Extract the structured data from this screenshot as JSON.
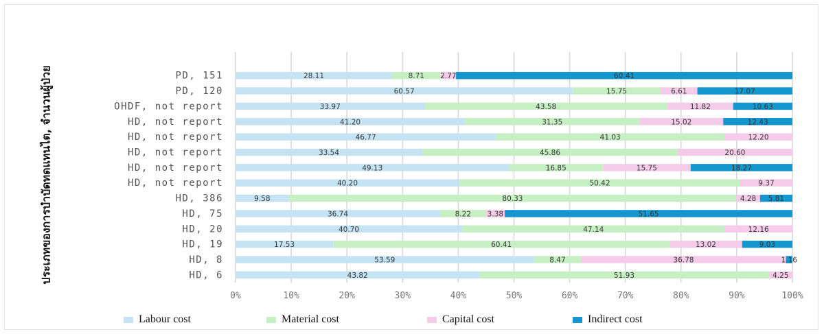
{
  "chart_data": {
    "type": "bar",
    "orientation": "horizontal",
    "stacked": "percent",
    "ylabel": "ประเภทของการบำบัดทดแทนไต, จำนวนผู้ป่วย",
    "categories": [
      "PD, 151",
      "PD, 120",
      "OHDF, not report",
      "HD, not report",
      "HD, not report",
      "HD, not report",
      "HD, not report",
      "HD, not report",
      "HD, 386",
      "HD, 75",
      "HD, 20",
      "HD, 19",
      "HD, 8",
      "HD, 6"
    ],
    "data_labels": {
      "Labour cost": [
        "28.11",
        "60.57",
        "33.97",
        "41.20",
        "46.77",
        "33.54",
        "49.13",
        "40.20",
        "9.58",
        "36.74",
        "40.70",
        "17.53",
        "53.59",
        "43.82"
      ],
      "Material cost": [
        "8.71",
        "15.75",
        "43.58",
        "31.35",
        "41.03",
        "45.86",
        "16.85",
        "50.42",
        "80.33",
        "8.22",
        "47.14",
        "60.41",
        "8.47",
        "51.93"
      ],
      "Capital cost": [
        "2.77",
        "6.61",
        "11.82",
        "15.02",
        "12.20",
        "20.60",
        "15.75",
        "9.37",
        "4.28",
        "3.38",
        "12.16",
        "13.02",
        "36.78",
        "4.25"
      ],
      "Indirect cost": [
        "60.41",
        "17.07",
        "10.63",
        "12.43",
        "",
        "",
        "18.27",
        "",
        "5.81",
        "51.65",
        "",
        "9.03",
        "1.16",
        ""
      ]
    },
    "series": [
      {
        "name": "Labour cost",
        "color": "#c5e3f3",
        "values": [
          28.11,
          60.57,
          33.97,
          41.2,
          46.77,
          33.54,
          49.13,
          40.2,
          9.58,
          36.74,
          40.7,
          17.53,
          53.59,
          43.82
        ]
      },
      {
        "name": "Material cost",
        "color": "#c7efc4",
        "values": [
          8.71,
          15.75,
          43.58,
          31.35,
          41.03,
          45.86,
          16.85,
          50.42,
          80.33,
          8.22,
          47.14,
          60.41,
          8.47,
          51.93
        ]
      },
      {
        "name": "Capital cost",
        "color": "#f4cbe8",
        "values": [
          2.77,
          6.61,
          11.82,
          15.02,
          12.2,
          20.6,
          15.75,
          9.37,
          4.28,
          3.38,
          12.16,
          13.02,
          36.78,
          4.25
        ]
      },
      {
        "name": "Indirect cost",
        "color": "#1497cf",
        "values": [
          60.41,
          17.07,
          10.63,
          12.43,
          0,
          0,
          18.27,
          0,
          5.81,
          51.65,
          0,
          9.03,
          1.16,
          0
        ]
      }
    ],
    "x_ticks": [
      "0%",
      "10%",
      "20%",
      "30%",
      "40%",
      "50%",
      "60%",
      "70%",
      "80%",
      "90%",
      "100%"
    ],
    "xlim": [
      0,
      100
    ],
    "grid": true,
    "legend_position": "bottom"
  }
}
